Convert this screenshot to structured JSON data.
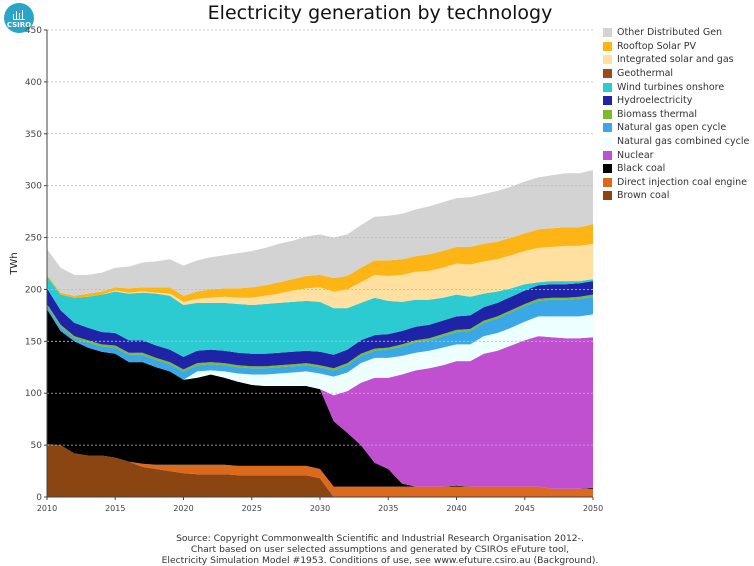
{
  "logo": {
    "text": "CSIRO"
  },
  "chart_data": {
    "type": "area",
    "title": "Electricity generation by technology",
    "ylabel": "TWh",
    "xlabel": "",
    "xlim": [
      2010,
      2050
    ],
    "ylim": [
      0,
      450
    ],
    "x_ticks": [
      "2010",
      "2015",
      "2020",
      "2025",
      "2030",
      "2035",
      "2040",
      "2045",
      "2050"
    ],
    "y_ticks": [
      "0",
      "50",
      "100",
      "150",
      "200",
      "250",
      "300",
      "350",
      "400",
      "450"
    ],
    "grid": "horizontal dashed",
    "legend_position": "right",
    "x": [
      2010,
      2011,
      2012,
      2013,
      2014,
      2015,
      2016,
      2017,
      2018,
      2019,
      2020,
      2021,
      2022,
      2023,
      2024,
      2025,
      2026,
      2027,
      2028,
      2029,
      2030,
      2031,
      2032,
      2033,
      2034,
      2035,
      2036,
      2037,
      2038,
      2039,
      2040,
      2041,
      2042,
      2043,
      2044,
      2045,
      2046,
      2047,
      2048,
      2049,
      2050
    ],
    "series": [
      {
        "name": "Brown coal",
        "color": "#8b4513",
        "values": [
          51,
          50,
          42,
          40,
          40,
          38,
          34,
          29,
          27,
          25,
          23,
          22,
          22,
          22,
          21,
          21,
          21,
          21,
          21,
          21,
          18,
          0,
          0,
          0,
          0,
          0,
          0,
          0,
          0,
          0,
          0,
          0,
          0,
          0,
          0,
          0,
          0,
          0,
          0,
          0,
          0
        ]
      },
      {
        "name": "Direct injection coal engine",
        "color": "#dd6a1c",
        "values": [
          0,
          0,
          0,
          0,
          0,
          0,
          0,
          3,
          4,
          6,
          8,
          9,
          9,
          9,
          9,
          9,
          9,
          9,
          9,
          9,
          9,
          10,
          10,
          10,
          10,
          10,
          10,
          10,
          10,
          10,
          10,
          10,
          10,
          10,
          10,
          10,
          10,
          8,
          8,
          8,
          8
        ]
      },
      {
        "name": "Black coal",
        "color": "#000000",
        "values": [
          130,
          110,
          108,
          104,
          100,
          100,
          96,
          98,
          94,
          90,
          82,
          84,
          87,
          84,
          81,
          78,
          77,
          77,
          77,
          77,
          77,
          63,
          52,
          40,
          23,
          17,
          3,
          0,
          0,
          0,
          1,
          0,
          0,
          0,
          0,
          0,
          0,
          0,
          0,
          0,
          1
        ]
      },
      {
        "name": "Nuclear",
        "color": "#c050d0",
        "values": [
          0,
          0,
          0,
          0,
          0,
          0,
          0,
          0,
          0,
          0,
          0,
          0,
          0,
          0,
          0,
          0,
          0,
          0,
          0,
          0,
          0,
          25,
          40,
          60,
          82,
          88,
          105,
          112,
          114,
          117,
          120,
          121,
          128,
          131,
          136,
          141,
          145,
          146,
          145,
          145,
          145
        ]
      },
      {
        "name": "Natural gas combined cycle",
        "color": "#eeffff",
        "values": [
          0,
          0,
          0,
          0,
          0,
          0,
          0,
          0,
          0,
          0,
          0,
          6,
          4,
          6,
          8,
          10,
          11,
          12,
          13,
          14,
          15,
          18,
          18,
          19,
          19,
          19,
          18,
          17,
          17,
          17,
          16,
          16,
          17,
          17,
          17,
          18,
          19,
          20,
          21,
          21,
          22
        ]
      },
      {
        "name": "Natural gas open cycle",
        "color": "#3aa8e6",
        "values": [
          3,
          4,
          3,
          5,
          5,
          6,
          7,
          7,
          7,
          7,
          8,
          6,
          6,
          6,
          6,
          6,
          6,
          6,
          6,
          6,
          6,
          6,
          7,
          7,
          7,
          8,
          9,
          10,
          10,
          11,
          12,
          13,
          13,
          14,
          15,
          15,
          15,
          16,
          16,
          17,
          17
        ]
      },
      {
        "name": "Biomass thermal",
        "color": "#7cba2a",
        "values": [
          2,
          2,
          2,
          2,
          2,
          2,
          2,
          2,
          2,
          2,
          2,
          2,
          2,
          2,
          2,
          2,
          2,
          2,
          2,
          2,
          2,
          2,
          2,
          2,
          2,
          2,
          2,
          2,
          2,
          2,
          2,
          2,
          2,
          2,
          2,
          2,
          2,
          2,
          2,
          2,
          2
        ]
      },
      {
        "name": "Hydroelectricity",
        "color": "#1e23a8",
        "values": [
          15,
          14,
          13,
          12,
          12,
          12,
          12,
          12,
          12,
          12,
          12,
          12,
          12,
          12,
          12,
          12,
          12,
          12,
          12,
          12,
          13,
          13,
          13,
          13,
          13,
          13,
          13,
          13,
          13,
          13,
          13,
          13,
          13,
          13,
          13,
          13,
          13,
          13,
          13,
          13,
          13
        ]
      },
      {
        "name": "Wind turbines onshore",
        "color": "#2ccbd2",
        "values": [
          12,
          15,
          24,
          30,
          36,
          40,
          45,
          46,
          50,
          52,
          50,
          46,
          45,
          46,
          47,
          47,
          48,
          48,
          48,
          48,
          48,
          45,
          40,
          36,
          36,
          32,
          28,
          26,
          24,
          22,
          21,
          18,
          13,
          11,
          8,
          6,
          3,
          3,
          3,
          2,
          2
        ]
      },
      {
        "name": "Geothermal",
        "color": "#9c4a1a",
        "values": [
          0,
          0,
          0,
          0,
          0,
          0,
          0,
          0,
          0,
          0,
          0,
          0,
          0,
          0,
          0,
          0,
          0,
          0,
          0,
          0,
          0,
          0,
          0,
          0,
          0,
          0,
          0,
          0,
          0,
          0,
          0,
          0,
          0,
          0,
          0,
          0,
          0,
          0,
          0,
          0,
          0
        ]
      },
      {
        "name": "Integrated solar and gas",
        "color": "#ffe0a0",
        "values": [
          0,
          0,
          0,
          0,
          0,
          1,
          1,
          1,
          1,
          2,
          3,
          4,
          5,
          6,
          6,
          7,
          8,
          9,
          11,
          12,
          14,
          16,
          18,
          20,
          22,
          24,
          26,
          27,
          28,
          29,
          30,
          31,
          31,
          31,
          32,
          32,
          33,
          33,
          34,
          34,
          34
        ]
      },
      {
        "name": "Rooftop Solar PV",
        "color": "#fdb515",
        "values": [
          1,
          2,
          2,
          3,
          3,
          3,
          4,
          4,
          5,
          6,
          6,
          7,
          8,
          8,
          9,
          10,
          10,
          11,
          11,
          12,
          12,
          13,
          13,
          14,
          14,
          15,
          15,
          15,
          16,
          16,
          16,
          17,
          17,
          17,
          17,
          17,
          18,
          18,
          18,
          18,
          19
        ]
      },
      {
        "name": "Other Distributed Gen",
        "color": "#d3d3d3",
        "values": [
          25,
          24,
          20,
          18,
          18,
          19,
          21,
          24,
          25,
          27,
          29,
          30,
          31,
          32,
          34,
          35,
          36,
          37,
          37,
          38,
          39,
          39,
          40,
          41,
          42,
          43,
          44,
          45,
          46,
          47,
          47,
          48,
          48,
          49,
          49,
          50,
          50,
          51,
          52,
          52,
          52
        ]
      }
    ]
  },
  "source": {
    "lines": [
      "Source: Copyright Commonwealth Scientific and Industrial Research Organisation 2012-.",
      "Chart based on user selected assumptions and generated by CSIROs eFuture tool,",
      "Electricity Simulation Model #1953. Conditions of use, see www.efuture.csiro.au (Background)."
    ]
  }
}
